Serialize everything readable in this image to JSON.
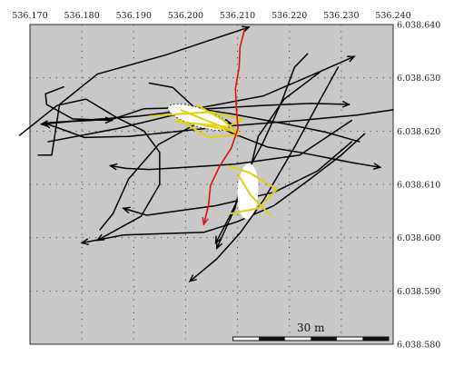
{
  "chart_data": {
    "type": "map",
    "title": "",
    "x_axis": {
      "ticks": [
        536.17,
        536.18,
        536.19,
        536.2,
        536.21,
        536.22,
        536.23,
        536.24
      ],
      "tick_labels": [
        "536.170",
        "536.180",
        "536.190",
        "536.200",
        "536.210",
        "536.220",
        "536.230",
        "536.240"
      ],
      "range": [
        536.17,
        536.24
      ]
    },
    "y_axis": {
      "ticks": [
        6038.64,
        6038.63,
        6038.62,
        6038.61,
        6038.6,
        6038.59,
        6038.58
      ],
      "tick_labels": [
        "6.038.640",
        "6.038.630",
        "6.038.620",
        "6.038.610",
        "6.038.600",
        "6.038.590",
        "6.038.580"
      ],
      "range": [
        6038.58,
        6038.64
      ]
    },
    "grid": "dotted",
    "background_color": "#c8c8c8",
    "scale_bar": {
      "label": "30 m",
      "length_km": 0.03
    },
    "colors": {
      "track": "#000000",
      "highlight_track": "#e01010",
      "crossing": "#e0d010",
      "ellipse_fill": "#ffffff"
    },
    "tracks": [
      {
        "points": [
          [
            536.2114,
            6038.6392
          ],
          [
            536.2105,
            6038.6358
          ],
          [
            536.2103,
            6038.6318
          ],
          [
            536.2096,
            6038.628
          ],
          [
            536.2098,
            6038.624
          ],
          [
            536.2101,
            6038.6205
          ],
          [
            536.2088,
            6038.6168
          ],
          [
            536.2066,
            6038.6135
          ],
          [
            536.2048,
            6038.6098
          ],
          [
            536.2044,
            6038.606
          ],
          [
            536.2035,
            6038.6025
          ]
        ],
        "highlight": true
      },
      {
        "points": [
          [
            536.1716,
            6038.6155
          ],
          [
            536.1742,
            6038.6155
          ],
          [
            536.1757,
            6038.625
          ],
          [
            536.183,
            6038.6307
          ],
          [
            536.1962,
            6038.6343
          ],
          [
            536.2122,
            6038.6395
          ]
        ]
      },
      {
        "points": [
          [
            536.1728,
            6038.6215
          ],
          [
            536.191,
            6038.6228
          ],
          [
            536.201,
            6038.624
          ],
          [
            536.215,
            6038.6248
          ],
          [
            536.224,
            6038.6252
          ],
          [
            536.2315,
            6038.625
          ]
        ]
      },
      {
        "points": [
          [
            536.1735,
            6038.618
          ],
          [
            536.187,
            6038.6205
          ],
          [
            536.1985,
            6038.6232
          ],
          [
            536.203,
            6038.6244
          ],
          [
            536.215,
            6038.6266
          ],
          [
            536.2255,
            6038.631
          ],
          [
            536.2325,
            6038.634
          ]
        ]
      },
      {
        "points": [
          [
            536.2335,
            6038.618
          ],
          [
            536.227,
            6038.6198
          ],
          [
            536.22,
            6038.6212
          ],
          [
            536.209,
            6038.6232
          ],
          [
            536.201,
            6038.6244
          ],
          [
            536.192,
            6038.6242
          ],
          [
            536.1858,
            6038.6222
          ],
          [
            536.178,
            6038.6218
          ],
          [
            536.1722,
            6038.6213
          ]
        ]
      },
      {
        "points": [
          [
            536.24,
            6038.624
          ],
          [
            536.233,
            6038.623
          ],
          [
            536.222,
            6038.622
          ],
          [
            536.209,
            6038.621
          ],
          [
            536.199,
            6038.62
          ],
          [
            536.189,
            6038.619
          ],
          [
            536.1805,
            6038.6188
          ],
          [
            536.176,
            6038.6204
          ],
          [
            536.1728,
            6038.6215
          ]
        ]
      },
      {
        "points": [
          [
            536.193,
            6038.629
          ],
          [
            536.1975,
            6038.6282
          ],
          [
            536.2035,
            6038.6228
          ],
          [
            536.2085,
            6038.6198
          ],
          [
            536.2158,
            6038.617
          ],
          [
            536.222,
            6038.616
          ],
          [
            536.2325,
            6038.614
          ],
          [
            536.2375,
            6038.6132
          ]
        ]
      },
      {
        "points": [
          [
            536.232,
            6038.622
          ],
          [
            536.222,
            6038.6155
          ],
          [
            536.2095,
            6038.6138
          ],
          [
            536.2,
            6038.6132
          ],
          [
            536.193,
            6038.6128
          ],
          [
            536.1885,
            6038.613
          ],
          [
            536.1855,
            6038.6135
          ]
        ]
      },
      {
        "points": [
          [
            536.1835,
            6038.6015
          ],
          [
            536.186,
            6038.6045
          ],
          [
            536.189,
            6038.611
          ],
          [
            536.1948,
            6038.6175
          ],
          [
            536.204,
            6038.6224
          ],
          [
            536.2088,
            6038.6214
          ]
        ]
      },
      {
        "points": [
          [
            536.232,
            6038.618
          ],
          [
            536.2254,
            6038.6125
          ],
          [
            536.217,
            6038.6085
          ],
          [
            536.2058,
            6038.606
          ],
          [
            536.1983,
            6038.605
          ],
          [
            536.1925,
            6038.6042
          ],
          [
            536.188,
            6038.6055
          ]
        ]
      },
      {
        "points": [
          [
            536.168,
            6038.6192
          ],
          [
            536.1752,
            6038.6248
          ],
          [
            536.1808,
            6038.626
          ],
          [
            536.1868,
            6038.6225
          ],
          [
            536.192,
            6038.62
          ],
          [
            536.195,
            6038.616
          ],
          [
            536.195,
            6038.61
          ],
          [
            536.1914,
            6038.604
          ],
          [
            536.183,
            6038.5995
          ]
        ]
      },
      {
        "points": [
          [
            536.1765,
            6038.6283
          ],
          [
            536.173,
            6038.627
          ],
          [
            536.1732,
            6038.625
          ],
          [
            536.1782,
            6038.6223
          ],
          [
            536.1858,
            6038.622
          ]
        ]
      },
      {
        "points": [
          [
            536.2258,
            6038.631
          ],
          [
            536.219,
            6038.626
          ],
          [
            536.214,
            6038.619
          ],
          [
            536.212,
            6038.611
          ],
          [
            536.2085,
            6038.604
          ],
          [
            536.2058,
            6038.599
          ]
        ]
      },
      {
        "points": [
          [
            536.2294,
            6038.632
          ],
          [
            536.226,
            6038.626
          ],
          [
            536.221,
            6038.617
          ],
          [
            536.215,
            6038.607
          ],
          [
            536.2106,
            6038.601
          ],
          [
            536.206,
            6038.596
          ],
          [
            536.2008,
            6038.5918
          ]
        ]
      },
      {
        "points": [
          [
            536.2235,
            6038.6345
          ],
          [
            536.221,
            6038.632
          ],
          [
            536.2185,
            6038.6255
          ],
          [
            536.215,
            6038.618
          ],
          [
            536.2106,
            6038.61
          ],
          [
            536.2095,
            6038.6055
          ],
          [
            536.206,
            6038.598
          ]
        ]
      },
      {
        "points": [
          [
            536.2345,
            6038.6195
          ],
          [
            536.23,
            6038.6155
          ],
          [
            536.224,
            6038.611
          ],
          [
            536.217,
            6038.606
          ],
          [
            536.21,
            6038.603
          ],
          [
            536.2035,
            6038.601
          ],
          [
            536.188,
            6038.6005
          ],
          [
            536.18,
            6038.599
          ]
        ]
      }
    ],
    "crossing_tracks": [
      [
        [
          536.193,
          6038.6228
        ],
        [
          536.205,
          6038.6236
        ],
        [
          536.211,
          6038.6222
        ],
        [
          536.208,
          6038.6208
        ],
        [
          536.198,
          6038.6218
        ]
      ],
      [
        [
          536.199,
          6038.624
        ],
        [
          536.206,
          6038.6212
        ],
        [
          536.2105,
          6038.6194
        ],
        [
          536.2045,
          6038.6188
        ],
        [
          536.1985,
          6038.6222
        ]
      ],
      [
        [
          536.202,
          6038.625
        ],
        [
          536.207,
          6038.6222
        ],
        [
          536.21,
          6038.6198
        ],
        [
          536.203,
          6038.6212
        ]
      ],
      [
        [
          536.208,
          6038.6135
        ],
        [
          536.2123,
          6038.6122
        ],
        [
          536.2178,
          6038.609
        ]
      ],
      [
        [
          536.2085,
          6038.6045
        ],
        [
          536.214,
          6038.6055
        ],
        [
          536.2175,
          6038.609
        ]
      ],
      [
        [
          536.21,
          6038.612
        ],
        [
          536.2125,
          6038.608
        ],
        [
          536.2165,
          6038.604
        ]
      ]
    ],
    "ellipses": [
      {
        "center": [
          536.2025,
          6038.6226
        ],
        "rx_km": 0.0062,
        "ry_km": 0.0017,
        "rotation_deg": 18,
        "dotted_outline": true
      },
      {
        "center": [
          536.212,
          6038.6087
        ],
        "rx_km": 0.002,
        "ry_km": 0.0052,
        "rotation_deg": 3,
        "dotted_outline": false
      }
    ]
  }
}
